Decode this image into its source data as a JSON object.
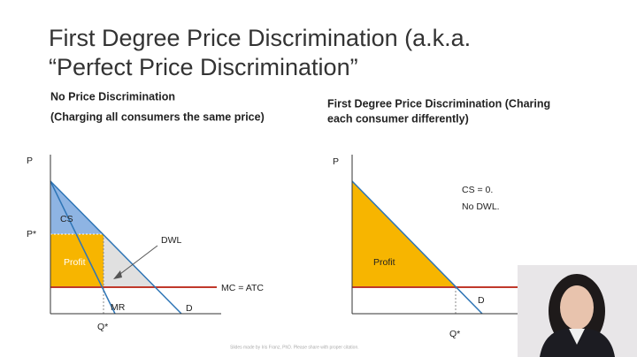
{
  "title": {
    "line1": "First Degree Price Discrimination (a.k.a.",
    "line2": "“Perfect Price Discrimination”"
  },
  "left": {
    "heading1": "No Price Discrimination",
    "heading2": "(Charging all consumers the same price)",
    "labels": {
      "p": "P",
      "p_star": "P*",
      "cs": "CS",
      "profit": "Profit",
      "dwl": "DWL",
      "mc": "MC = ATC",
      "mr": "MR",
      "d": "D",
      "q_star": "Q*"
    }
  },
  "right": {
    "heading1": "First Degree Price Discrimination (Charing",
    "heading2": "each consumer differently)",
    "labels": {
      "p": "P",
      "cs": "CS = 0.",
      "no_dwl": "No DWL.",
      "profit": "Profit",
      "d": "D",
      "q_star": "Q*"
    }
  },
  "footer": "Slides made by Iris Franz, PhD. Please share with proper citation."
}
